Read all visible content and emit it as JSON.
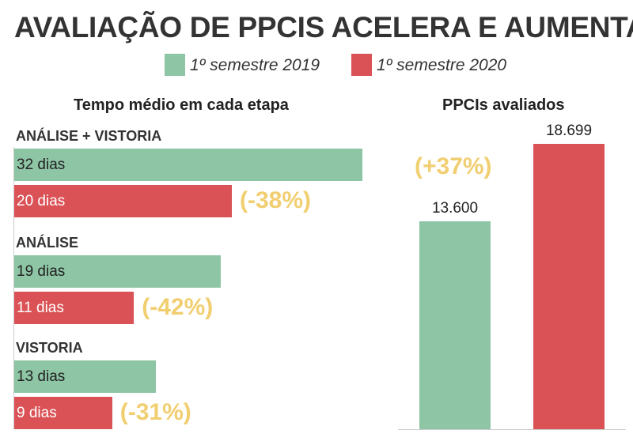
{
  "title": "AVALIAÇÃO DE PPCIS ACELERA E AUMENTA",
  "colors": {
    "s2019": "#8dc5a5",
    "s2020": "#da5256",
    "highlight": "#f1ce70",
    "white_text": "#ffffff",
    "dark_text": "#222222"
  },
  "legend": [
    {
      "label": "1º semestre 2019",
      "color": "#8dc5a5"
    },
    {
      "label": "1º semestre 2020",
      "color": "#da5256"
    }
  ],
  "chart_data": [
    {
      "type": "bar",
      "orientation": "horizontal",
      "title": "Tempo médio em cada etapa",
      "xlim": [
        0,
        32
      ],
      "categories": [
        "ANÁLISE + VISTORIA",
        "ANÁLISE",
        "VISTORIA"
      ],
      "series": [
        {
          "name": "1º semestre 2019",
          "values": [
            32,
            19,
            13
          ],
          "labels": [
            "32 dias",
            "19 dias",
            "13 dias"
          ]
        },
        {
          "name": "1º semestre 2020",
          "values": [
            20,
            11,
            9
          ],
          "labels": [
            "20 dias",
            "11 dias",
            "9 dias"
          ]
        }
      ],
      "annotations": [
        "(-38%)",
        "(-42%)",
        "(-31%)"
      ]
    },
    {
      "type": "bar",
      "orientation": "vertical",
      "title": "PPCIs avaliados",
      "ylim": [
        0,
        18699
      ],
      "categories": [
        "1º semestre 2019",
        "1º semestre 2020"
      ],
      "values": [
        13600,
        18699
      ],
      "labels": [
        "13.600",
        "18.699"
      ],
      "annotation": "(+37%)"
    }
  ]
}
